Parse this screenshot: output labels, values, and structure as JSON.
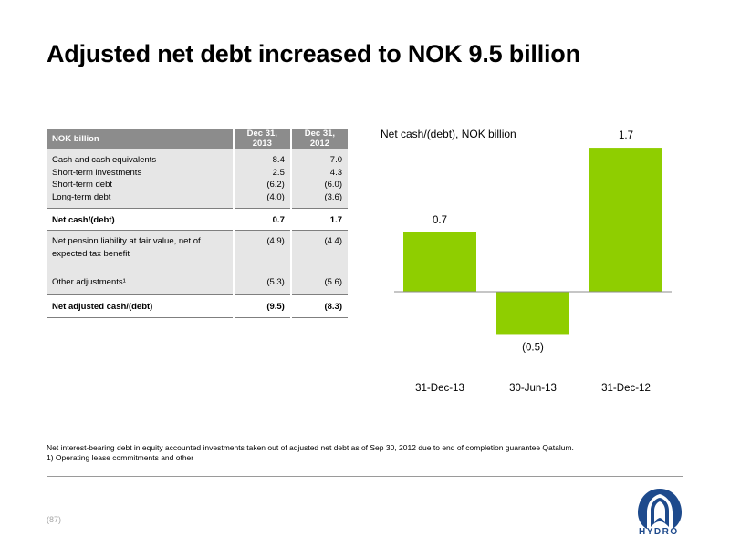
{
  "title": "Adjusted net debt increased to NOK 9.5 billion",
  "table": {
    "header": {
      "label": "NOK billion",
      "col1": "Dec 31, 2013",
      "col2": "Dec 31, 2012"
    },
    "group1": {
      "labels": [
        "Cash and cash equivalents",
        "Short-term investments",
        "Short-term debt",
        "Long-term debt"
      ],
      "col1": [
        "8.4",
        "2.5",
        "(6.2)",
        "(4.0)"
      ],
      "col2": [
        "7.0",
        "4.3",
        "(6.0)",
        "(3.6)"
      ]
    },
    "net_cash": {
      "label": "Net cash/(debt)",
      "col1": "0.7",
      "col2": "1.7"
    },
    "pension": {
      "label_line1": "Net pension liability at fair value, net of",
      "label_line2": "expected tax benefit",
      "col1": "(4.9)",
      "col2": "(4.4)"
    },
    "other": {
      "label": "Other adjustments¹",
      "col1": "(5.3)",
      "col2": "(5.6)"
    },
    "net_adjusted": {
      "label": "Net adjusted cash/(debt)",
      "col1": "(9.5)",
      "col2": "(8.3)"
    }
  },
  "chart_data": {
    "type": "bar",
    "title": "Net cash/(debt), NOK billion",
    "categories": [
      "31-Dec-13",
      "30-Jun-13",
      "31-Dec-12"
    ],
    "values": [
      0.7,
      -0.5,
      1.7
    ],
    "value_labels": [
      "0.7",
      "(0.5)",
      "1.7"
    ],
    "color": "#8fce00",
    "grid": false,
    "ylim": [
      -0.5,
      1.7
    ]
  },
  "footnotes": {
    "line1": "Net interest-bearing debt in equity accounted investments taken out of adjusted net debt as of Sep 30, 2012 due to end of completion guarantee Qatalum.",
    "line2": "1) Operating lease commitments and other"
  },
  "page_number": "(87)",
  "logo": {
    "text": "HYDRO",
    "icon": "hydro-logo-icon",
    "color": "#1e4a8c"
  }
}
